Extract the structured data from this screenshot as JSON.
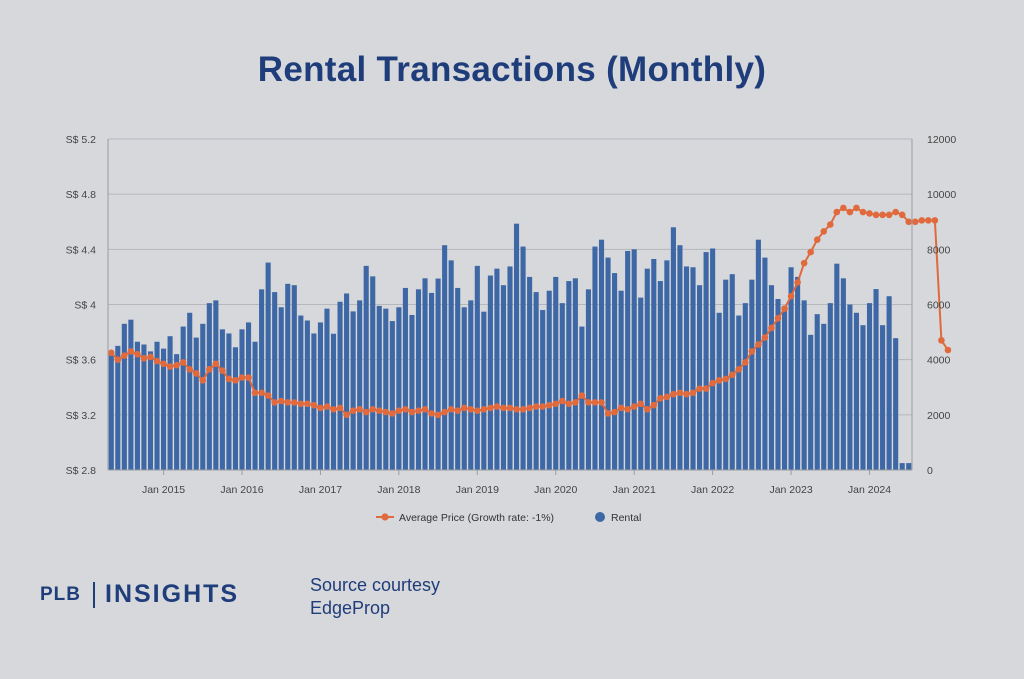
{
  "page": {
    "title": "Rental Transactions (Monthly)"
  },
  "footer": {
    "brand_left": "PLB",
    "brand_right": "INSIGHTS",
    "source_line1": "Source courtesy",
    "source_line2": "EdgeProp"
  },
  "colors": {
    "bar": "#3e68a5",
    "line": "#e06a3d",
    "title": "#1f3d7a",
    "background": "#d6d8db"
  },
  "chart_data": {
    "type": "bar",
    "title": "Rental Transactions (Monthly)",
    "xlabel": "",
    "ylabel_left": "",
    "ylabel_right": "",
    "start_month": "2014-05",
    "x_ticks": [
      "Jan 2015",
      "Jan 2016",
      "Jan 2017",
      "Jan 2018",
      "Jan 2019",
      "Jan 2020",
      "Jan 2021",
      "Jan 2022",
      "Jan 2023",
      "Jan 2024"
    ],
    "y_left_ticks": [
      "S$ 2.8",
      "S$ 3.2",
      "S$ 3.6",
      "S$ 4",
      "S$ 4.4",
      "S$ 4.8",
      "S$ 5.2"
    ],
    "y_left_range": [
      2.8,
      5.2
    ],
    "y_right_ticks": [
      "0",
      "2000",
      "4000",
      "6000",
      "8000",
      "10000",
      "12000"
    ],
    "y_right_range": [
      0,
      12000
    ],
    "grid": true,
    "legend_position": "bottom",
    "series": [
      {
        "name": "Average Price (Growth rate: -1%)",
        "type": "line",
        "axis": "left",
        "values": [
          3.65,
          3.6,
          3.63,
          3.66,
          3.64,
          3.61,
          3.62,
          3.59,
          3.57,
          3.55,
          3.56,
          3.58,
          3.53,
          3.5,
          3.45,
          3.53,
          3.57,
          3.52,
          3.46,
          3.45,
          3.47,
          3.47,
          3.36,
          3.36,
          3.34,
          3.29,
          3.3,
          3.29,
          3.29,
          3.28,
          3.28,
          3.27,
          3.25,
          3.26,
          3.24,
          3.25,
          3.2,
          3.23,
          3.24,
          3.22,
          3.24,
          3.23,
          3.22,
          3.21,
          3.23,
          3.24,
          3.22,
          3.23,
          3.24,
          3.21,
          3.2,
          3.22,
          3.24,
          3.23,
          3.25,
          3.24,
          3.23,
          3.24,
          3.25,
          3.26,
          3.25,
          3.25,
          3.24,
          3.24,
          3.25,
          3.26,
          3.26,
          3.27,
          3.28,
          3.3,
          3.28,
          3.29,
          3.34,
          3.29,
          3.29,
          3.29,
          3.21,
          3.22,
          3.25,
          3.24,
          3.26,
          3.28,
          3.24,
          3.27,
          3.32,
          3.33,
          3.35,
          3.36,
          3.35,
          3.36,
          3.39,
          3.39,
          3.43,
          3.45,
          3.46,
          3.49,
          3.53,
          3.58,
          3.66,
          3.71,
          3.76,
          3.83,
          3.9,
          3.97,
          4.06,
          4.16,
          4.3,
          4.38,
          4.47,
          4.53,
          4.58,
          4.67,
          4.7,
          4.67,
          4.7,
          4.67,
          4.66,
          4.65,
          4.65,
          4.65,
          4.67,
          4.65,
          4.6,
          4.6,
          4.61,
          4.61,
          4.61,
          3.74,
          3.67
        ]
      },
      {
        "name": "Rental",
        "type": "bar",
        "axis": "right",
        "values": [
          4300,
          4500,
          5300,
          5450,
          4650,
          4550,
          4300,
          4650,
          4400,
          4850,
          4200,
          5200,
          5700,
          4800,
          5300,
          6050,
          6150,
          5100,
          4950,
          4450,
          5100,
          5350,
          4650,
          6550,
          7520,
          6450,
          5900,
          6750,
          6700,
          5600,
          5420,
          4950,
          5350,
          5850,
          4940,
          6100,
          6400,
          5750,
          6150,
          7400,
          7020,
          5950,
          5850,
          5400,
          5900,
          6600,
          5620,
          6550,
          6950,
          6420,
          6940,
          8150,
          7600,
          6600,
          5900,
          6150,
          7400,
          5740,
          7050,
          7300,
          6700,
          7380,
          8930,
          8100,
          7000,
          6450,
          5800,
          6500,
          7000,
          6050,
          6850,
          6950,
          5200,
          6550,
          8100,
          8350,
          7700,
          7140,
          6500,
          7940,
          8000,
          6250,
          7300,
          7650,
          6850,
          7600,
          8800,
          8150,
          7380,
          7350,
          6700,
          7900,
          8030,
          5700,
          6900,
          7100,
          5600,
          6050,
          6900,
          8350,
          7700,
          6700,
          6200,
          5950,
          7350,
          7000,
          6150,
          4900,
          5650,
          5300,
          6050,
          7480,
          6950,
          6000,
          5700,
          5250,
          6050,
          6560,
          5250,
          6300,
          4780,
          250,
          250
        ]
      }
    ]
  }
}
